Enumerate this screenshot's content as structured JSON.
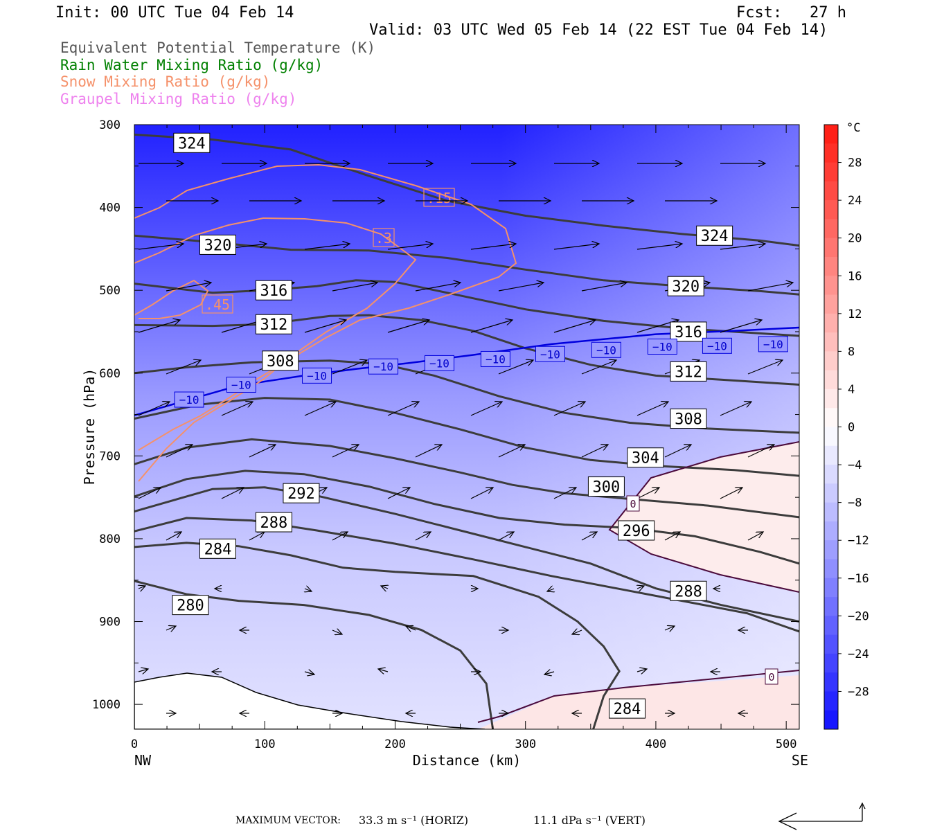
{
  "header": {
    "init": "Init: 00 UTC Tue 04 Feb 14",
    "fcst": "Fcst:   27 h",
    "valid": "Valid: 03 UTC Wed 05 Feb 14 (22 EST Tue 04 Feb 14)"
  },
  "legend": [
    {
      "text": "Equivalent Potential Temperature (K)",
      "color": "#555555"
    },
    {
      "text": "Rain Water Mixing Ratio (g/kg)",
      "color": "#008000"
    },
    {
      "text": "Snow Mixing Ratio (g/kg)",
      "color": "#f5916a"
    },
    {
      "text": "Graupel Mixing Ratio (g/kg)",
      "color": "#ee82ee"
    }
  ],
  "chart_data": {
    "type": "cross-section",
    "xlabel": "Distance (km)",
    "ylabel": "Pressure (hPa)",
    "xlim": [
      0,
      510
    ],
    "ylim": [
      1030,
      300
    ],
    "x_ticks": [
      0,
      100,
      200,
      300,
      400,
      500
    ],
    "y_ticks": [
      300,
      400,
      500,
      600,
      700,
      800,
      900,
      1000
    ],
    "left_end_label": "NW",
    "right_end_label": "SE",
    "colorbar": {
      "unit": "°C",
      "ticks": [
        28,
        24,
        20,
        16,
        12,
        8,
        4,
        0,
        -4,
        -8,
        -12,
        -16,
        -20,
        -24,
        -28
      ],
      "tick_labels": [
        "28",
        "24",
        "20",
        "16",
        "12",
        "8",
        "4",
        "0",
        "−4",
        "−8",
        "−12",
        "−16",
        "−20",
        "−24",
        "−28"
      ],
      "range": [
        -32,
        32
      ]
    },
    "theta_e_contours": [
      {
        "value": 324,
        "label": "324",
        "pts": [
          [
            0,
            312
          ],
          [
            60,
            318
          ],
          [
            120,
            330
          ],
          [
            180,
            362
          ],
          [
            240,
            392
          ],
          [
            300,
            410
          ],
          [
            360,
            422
          ],
          [
            420,
            432
          ],
          [
            480,
            440
          ],
          [
            510,
            446
          ]
        ],
        "labels_at": [
          [
            44,
            322
          ],
          [
            445,
            434
          ]
        ]
      },
      {
        "value": 320,
        "label": "320",
        "pts": [
          [
            0,
            434
          ],
          [
            60,
            442
          ],
          [
            120,
            451
          ],
          [
            180,
            452
          ],
          [
            240,
            461
          ],
          [
            300,
            475
          ],
          [
            360,
            488
          ],
          [
            420,
            495
          ],
          [
            480,
            501
          ],
          [
            510,
            505
          ]
        ],
        "labels_at": [
          [
            64,
            445
          ],
          [
            423,
            495
          ]
        ]
      },
      {
        "value": 316,
        "label": "316",
        "pts": [
          [
            0,
            492
          ],
          [
            60,
            503
          ],
          [
            100,
            500
          ],
          [
            140,
            495
          ],
          [
            170,
            488
          ],
          [
            200,
            490
          ],
          [
            240,
            503
          ],
          [
            300,
            523
          ],
          [
            360,
            537
          ],
          [
            420,
            546
          ],
          [
            480,
            552
          ],
          [
            510,
            555
          ]
        ],
        "labels_at": [
          [
            107,
            500
          ],
          [
            425,
            550
          ]
        ]
      },
      {
        "value": 312,
        "label": "312",
        "pts": [
          [
            0,
            542
          ],
          [
            60,
            543
          ],
          [
            100,
            541
          ],
          [
            150,
            531
          ],
          [
            180,
            530
          ],
          [
            220,
            536
          ],
          [
            260,
            549
          ],
          [
            300,
            570
          ],
          [
            350,
            590
          ],
          [
            400,
            603
          ],
          [
            450,
            608
          ],
          [
            510,
            614
          ]
        ],
        "labels_at": [
          [
            107,
            541
          ],
          [
            425,
            598
          ]
        ]
      },
      {
        "value": 308,
        "label": "308",
        "pts": [
          [
            0,
            600
          ],
          [
            40,
            593
          ],
          [
            90,
            587
          ],
          [
            150,
            585
          ],
          [
            190,
            589
          ],
          [
            230,
            603
          ],
          [
            280,
            628
          ],
          [
            330,
            648
          ],
          [
            380,
            660
          ],
          [
            440,
            667
          ],
          [
            510,
            672
          ]
        ],
        "labels_at": [
          [
            112,
            585
          ],
          [
            425,
            655
          ]
        ]
      },
      {
        "value": 304,
        "label": "304",
        "pts": [
          [
            0,
            655
          ],
          [
            50,
            638
          ],
          [
            100,
            630
          ],
          [
            150,
            632
          ],
          [
            200,
            648
          ],
          [
            250,
            668
          ],
          [
            300,
            690
          ],
          [
            350,
            705
          ],
          [
            400,
            712
          ],
          [
            460,
            717
          ],
          [
            510,
            724
          ]
        ],
        "labels_at": [
          [
            392,
            702
          ]
        ]
      },
      {
        "value": 300,
        "label": "300",
        "pts": [
          [
            0,
            710
          ],
          [
            40,
            690
          ],
          [
            90,
            680
          ],
          [
            150,
            688
          ],
          [
            200,
            703
          ],
          [
            250,
            720
          ],
          [
            290,
            735
          ],
          [
            330,
            745
          ],
          [
            380,
            752
          ],
          [
            440,
            760
          ],
          [
            510,
            774
          ]
        ],
        "labels_at": [
          [
            362,
            737
          ]
        ]
      },
      {
        "value": 296,
        "label": "296",
        "pts": [
          [
            0,
            749
          ],
          [
            40,
            728
          ],
          [
            85,
            718
          ],
          [
            130,
            722
          ],
          [
            180,
            737
          ],
          [
            230,
            758
          ],
          [
            280,
            775
          ],
          [
            330,
            783
          ],
          [
            380,
            787
          ],
          [
            430,
            797
          ],
          [
            480,
            816
          ],
          [
            510,
            830
          ]
        ],
        "labels_at": [
          [
            385,
            790
          ]
        ]
      },
      {
        "value": 292,
        "label": "292",
        "pts": [
          [
            0,
            767
          ],
          [
            60,
            740
          ],
          [
            100,
            738
          ],
          [
            140,
            748
          ],
          [
            200,
            770
          ],
          [
            250,
            790
          ],
          [
            300,
            810
          ],
          [
            350,
            830
          ],
          [
            400,
            860
          ],
          [
            450,
            880
          ],
          [
            510,
            900
          ]
        ],
        "labels_at": [
          [
            128,
            745
          ]
        ]
      },
      {
        "value": 288,
        "label": "288",
        "pts": [
          [
            0,
            791
          ],
          [
            40,
            775
          ],
          [
            90,
            778
          ],
          [
            140,
            790
          ],
          [
            200,
            806
          ],
          [
            260,
            825
          ],
          [
            320,
            845
          ],
          [
            370,
            860
          ],
          [
            420,
            875
          ],
          [
            470,
            890
          ],
          [
            510,
            912
          ]
        ],
        "labels_at": [
          [
            107,
            780
          ],
          [
            425,
            863
          ]
        ]
      },
      {
        "value": 284,
        "label": "284",
        "pts": [
          [
            0,
            810
          ],
          [
            40,
            805
          ],
          [
            80,
            809
          ],
          [
            120,
            820
          ],
          [
            160,
            835
          ],
          [
            200,
            840
          ],
          [
            260,
            845
          ],
          [
            310,
            870
          ],
          [
            340,
            900
          ],
          [
            360,
            930
          ],
          [
            372,
            960
          ],
          [
            360,
            990
          ],
          [
            352,
            1030
          ]
        ],
        "labels_at": [
          [
            64,
            812
          ],
          [
            378,
            1005
          ]
        ]
      },
      {
        "value": 280,
        "label": "280",
        "pts": [
          [
            0,
            851
          ],
          [
            40,
            867
          ],
          [
            80,
            875
          ],
          [
            130,
            880
          ],
          [
            180,
            892
          ],
          [
            220,
            910
          ],
          [
            250,
            935
          ],
          [
            270,
            975
          ],
          [
            275,
            1030
          ]
        ],
        "labels_at": [
          [
            43,
            880
          ]
        ]
      }
    ],
    "isotherm_minus10": {
      "label": "−10",
      "pts": [
        [
          0,
          651
        ],
        [
          40,
          633
        ],
        [
          80,
          615
        ],
        [
          130,
          603
        ],
        [
          170,
          595
        ],
        [
          210,
          588
        ],
        [
          260,
          578
        ],
        [
          320,
          565
        ],
        [
          400,
          553
        ],
        [
          460,
          549
        ],
        [
          510,
          545
        ]
      ],
      "labels_at": [
        [
          42,
          632
        ],
        [
          82,
          614
        ],
        [
          140,
          603
        ],
        [
          191,
          592
        ],
        [
          234,
          588
        ],
        [
          277,
          583
        ],
        [
          319,
          577
        ],
        [
          362,
          572
        ],
        [
          405,
          568
        ],
        [
          447,
          567
        ],
        [
          490,
          565
        ]
      ]
    },
    "isotherm_zero_label": "0",
    "snow_contours": [
      {
        "value": 0.15,
        "label": ".15"
      },
      {
        "value": 0.3,
        "label": ".3"
      },
      {
        "value": 0.45,
        "label": ".45"
      }
    ]
  },
  "footer": {
    "max_vector": "MAXIMUM VECTOR:",
    "horiz": "33.3 m s⁻¹ (HORIZ)",
    "vert": "11.1 dPa s⁻¹ (VERT)"
  }
}
